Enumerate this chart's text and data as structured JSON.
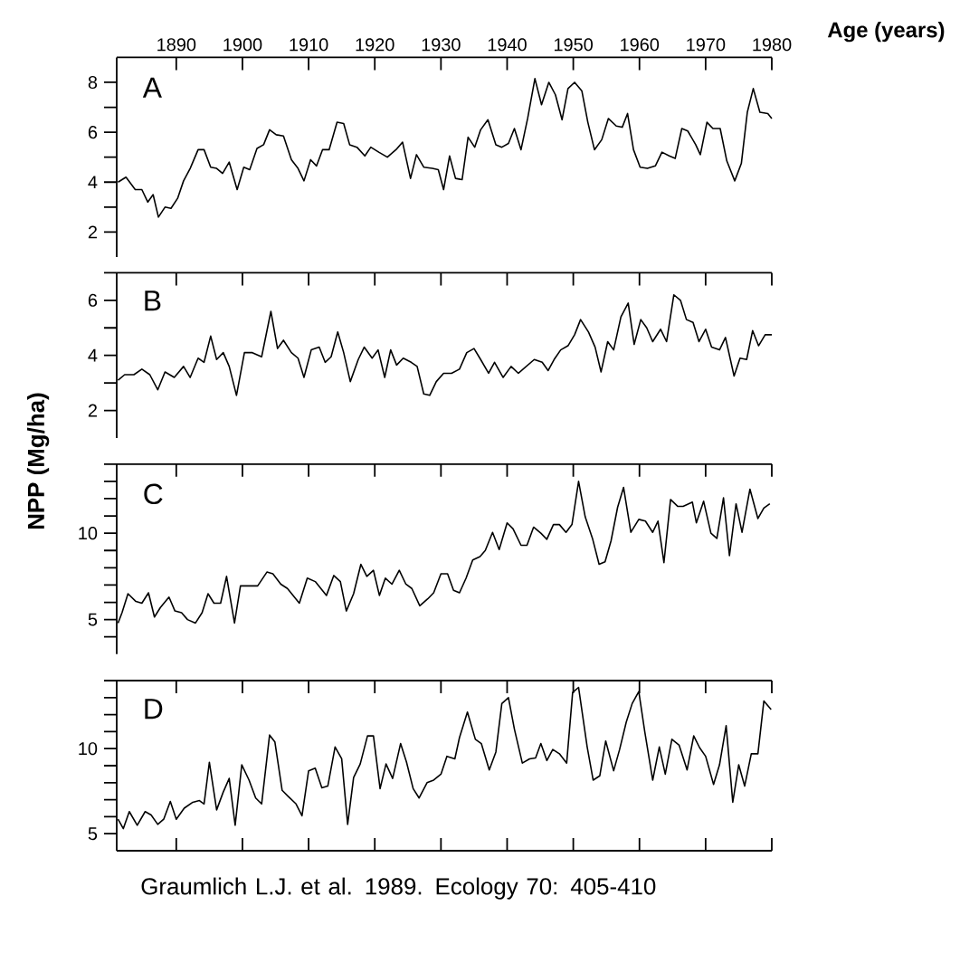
{
  "chart_data": [
    {
      "type": "line",
      "title": "A",
      "xlabel": "Age (years)",
      "x": [
        1881.2,
        1882.4,
        1883.8,
        1884.8,
        1885.7,
        1886.5,
        1887.3,
        1888.3,
        1889.2,
        1890.2,
        1891.1,
        1892.1,
        1893.3,
        1894.2,
        1895.2,
        1896.1,
        1897.0,
        1898.0,
        1899.2,
        1900.2,
        1901.1,
        1902.2,
        1903.2,
        1904.1,
        1905.1,
        1906.2,
        1907.4,
        1908.4,
        1909.3,
        1910.3,
        1911.2,
        1912.1,
        1913.1,
        1914.3,
        1915.3,
        1916.2,
        1917.3,
        1918.5,
        1919.4,
        1920.6,
        1921.9,
        1923.2,
        1924.2,
        1925.4,
        1926.3,
        1927.4,
        1928.7,
        1929.6,
        1930.4,
        1931.3,
        1932.2,
        1933.2,
        1934.1,
        1935.1,
        1936.0,
        1937.1,
        1938.3,
        1939.2,
        1940.2,
        1941.1,
        1942.1,
        1943.1,
        1944.2,
        1945.2,
        1946.3,
        1947.3,
        1948.3,
        1949.2,
        1950.2,
        1951.3,
        1952.2,
        1953.2,
        1954.3,
        1955.3,
        1956.5,
        1957.4,
        1958.2,
        1959.1,
        1960.1,
        1961.2,
        1962.4,
        1963.4,
        1964.5,
        1965.4,
        1966.4,
        1967.3,
        1968.5,
        1969.2,
        1970.2,
        1971.1,
        1972.2,
        1973.2,
        1974.4,
        1975.4,
        1976.3,
        1977.2,
        1978.2,
        1979.4,
        1980
      ],
      "series": [
        {
          "color": "#000000",
          "values": [
            4.0,
            4.2,
            3.7,
            3.7,
            3.2,
            3.5,
            2.6,
            3.0,
            2.95,
            3.35,
            4.05,
            4.55,
            5.3,
            5.3,
            4.6,
            4.55,
            4.35,
            4.8,
            3.7,
            4.6,
            4.5,
            5.35,
            5.5,
            6.1,
            5.9,
            5.85,
            4.9,
            4.55,
            4.05,
            4.9,
            4.65,
            5.3,
            5.3,
            6.4,
            6.35,
            5.5,
            5.4,
            5.05,
            5.4,
            5.2,
            5.0,
            5.3,
            5.6,
            4.15,
            5.1,
            4.6,
            4.55,
            4.5,
            3.7,
            5.05,
            4.15,
            4.1,
            5.8,
            5.4,
            6.1,
            6.5,
            5.5,
            5.4,
            5.55,
            6.15,
            5.3,
            6.55,
            8.15,
            7.1,
            8.0,
            7.5,
            6.5,
            7.75,
            8.0,
            7.65,
            6.4,
            5.3,
            5.7,
            6.55,
            6.25,
            6.2,
            6.75,
            5.3,
            4.6,
            4.55,
            4.65,
            5.2,
            5.05,
            4.95,
            6.15,
            6.05,
            5.5,
            5.1,
            6.4,
            6.15,
            6.15,
            4.85,
            4.05,
            4.75,
            6.8,
            7.75,
            6.8,
            6.75,
            6.55
          ]
        }
      ],
      "xlim": [
        1881,
        1980
      ],
      "xticks": [
        1890,
        1900,
        1910,
        1920,
        1930,
        1940,
        1950,
        1960,
        1970,
        1980
      ],
      "ylim": [
        1,
        9
      ],
      "yticks": [
        2,
        {
          "value": 3,
          "label": null
        },
        4,
        {
          "value": 5,
          "label": null
        },
        6,
        {
          "value": 7,
          "label": null
        },
        8
      ]
    },
    {
      "type": "line",
      "title": "B",
      "ylabel": "NPP (Mg/ha)",
      "x": [
        1881.2,
        1882.2,
        1883.6,
        1884.8,
        1886.0,
        1887.2,
        1888.3,
        1889.7,
        1891.1,
        1892.1,
        1893.3,
        1894.2,
        1895.2,
        1896.1,
        1897.1,
        1898.0,
        1899.1,
        1900.3,
        1901.5,
        1902.9,
        1904.3,
        1905.3,
        1906.2,
        1907.4,
        1908.4,
        1909.3,
        1910.4,
        1911.6,
        1912.5,
        1913.4,
        1914.4,
        1915.3,
        1916.3,
        1917.5,
        1918.4,
        1919.6,
        1920.5,
        1921.5,
        1922.4,
        1923.3,
        1924.3,
        1925.5,
        1926.4,
        1927.4,
        1928.3,
        1929.3,
        1930.4,
        1931.6,
        1932.8,
        1933.9,
        1935.0,
        1936.0,
        1937.2,
        1938.1,
        1939.4,
        1940.6,
        1941.7,
        1942.9,
        1944.1,
        1945.3,
        1946.2,
        1947.1,
        1948.1,
        1949.2,
        1950.2,
        1951.1,
        1952.3,
        1953.3,
        1954.2,
        1955.2,
        1956.1,
        1957.2,
        1958.3,
        1959.2,
        1960.2,
        1961.1,
        1962.0,
        1963.2,
        1964.1,
        1965.2,
        1966.2,
        1967.1,
        1968.1,
        1969.0,
        1970.0,
        1970.9,
        1972.1,
        1973.0,
        1974.3,
        1975.2,
        1976.2,
        1977.1,
        1978.0,
        1979.0,
        1980
      ],
      "series": [
        {
          "color": "#000000",
          "values": [
            3.1,
            3.3,
            3.3,
            3.5,
            3.3,
            2.75,
            3.4,
            3.2,
            3.6,
            3.2,
            3.9,
            3.75,
            4.7,
            3.85,
            4.1,
            3.6,
            2.55,
            4.1,
            4.1,
            3.95,
            5.6,
            4.25,
            4.55,
            4.1,
            3.9,
            3.2,
            4.2,
            4.3,
            3.75,
            3.95,
            4.85,
            4.1,
            3.05,
            3.85,
            4.3,
            3.9,
            4.2,
            3.2,
            4.2,
            3.65,
            3.9,
            3.75,
            3.6,
            2.6,
            2.55,
            3.05,
            3.35,
            3.35,
            3.5,
            4.1,
            4.25,
            3.85,
            3.35,
            3.75,
            3.2,
            3.6,
            3.35,
            3.6,
            3.85,
            3.75,
            3.45,
            3.85,
            4.2,
            4.35,
            4.75,
            5.3,
            4.85,
            4.3,
            3.4,
            4.5,
            4.2,
            5.4,
            5.9,
            4.4,
            5.3,
            5.0,
            4.5,
            4.95,
            4.5,
            6.2,
            6.0,
            5.3,
            5.2,
            4.5,
            4.95,
            4.3,
            4.2,
            4.65,
            3.25,
            3.9,
            3.85,
            4.9,
            4.35,
            4.75,
            4.75
          ]
        }
      ],
      "xlim": [
        1881,
        1980
      ],
      "xticks": [
        1890,
        1900,
        1910,
        1920,
        1930,
        1940,
        1950,
        1960,
        1970,
        1980
      ],
      "ylim": [
        1,
        7
      ],
      "yticks": [
        2,
        {
          "value": 3,
          "label": null
        },
        4,
        {
          "value": 5,
          "label": null
        },
        6,
        {
          "value": 7,
          "label": null
        }
      ],
      "tick_labels": "y"
    },
    {
      "type": "line",
      "title": "C",
      "x": [
        1881.2,
        1881.8,
        1882.7,
        1883.9,
        1884.8,
        1885.8,
        1886.7,
        1887.6,
        1888.9,
        1889.8,
        1890.8,
        1891.7,
        1892.9,
        1893.9,
        1894.8,
        1895.7,
        1896.7,
        1897.6,
        1898.8,
        1899.7,
        1900.8,
        1902.3,
        1903.7,
        1904.6,
        1905.8,
        1906.8,
        1908.6,
        1909.8,
        1911.0,
        1912.7,
        1913.8,
        1914.8,
        1915.7,
        1916.8,
        1917.9,
        1918.8,
        1919.8,
        1920.7,
        1921.6,
        1922.6,
        1923.7,
        1924.7,
        1925.6,
        1926.8,
        1928.0,
        1928.9,
        1930.0,
        1931.0,
        1931.9,
        1932.8,
        1933.8,
        1934.8,
        1935.9,
        1936.7,
        1937.8,
        1938.8,
        1940.0,
        1940.9,
        1942.1,
        1943.0,
        1944.0,
        1945.1,
        1946.0,
        1947.0,
        1947.9,
        1948.9,
        1949.8,
        1950.8,
        1951.8,
        1952.9,
        1953.9,
        1954.8,
        1955.7,
        1956.7,
        1957.6,
        1958.7,
        1959.9,
        1960.9,
        1962.0,
        1962.8,
        1963.7,
        1964.7,
        1965.8,
        1966.6,
        1968.0,
        1968.6,
        1969.7,
        1970.8,
        1971.7,
        1972.7,
        1973.6,
        1974.6,
        1975.5,
        1976.7,
        1977.9,
        1978.8,
        1979.7
      ],
      "series": [
        {
          "color": "#000000",
          "values": [
            4.8,
            5.4,
            6.5,
            6.05,
            5.95,
            6.55,
            5.15,
            5.7,
            6.3,
            5.5,
            5.4,
            5.0,
            4.8,
            5.4,
            6.5,
            5.95,
            5.95,
            7.5,
            4.8,
            6.95,
            6.95,
            6.95,
            7.75,
            7.65,
            7.05,
            6.8,
            5.95,
            7.4,
            7.2,
            6.4,
            7.55,
            7.2,
            5.5,
            6.5,
            8.2,
            7.5,
            7.85,
            6.4,
            7.4,
            7.05,
            7.85,
            7.05,
            6.8,
            5.8,
            6.2,
            6.55,
            7.65,
            7.65,
            6.7,
            6.55,
            7.4,
            8.45,
            8.65,
            9.0,
            10.05,
            9.05,
            10.6,
            10.25,
            9.3,
            9.3,
            10.35,
            10.0,
            9.65,
            10.5,
            10.5,
            10.05,
            10.5,
            13.0,
            10.95,
            9.7,
            8.2,
            8.35,
            9.55,
            11.5,
            12.65,
            10.05,
            10.8,
            10.7,
            10.05,
            10.7,
            8.3,
            11.95,
            11.55,
            11.55,
            11.8,
            10.6,
            11.85,
            10.0,
            9.7,
            12.05,
            8.7,
            11.7,
            10.05,
            12.55,
            10.85,
            11.45,
            11.7
          ]
        }
      ],
      "xlim": [
        1881,
        1980
      ],
      "xticks": [
        1890,
        1900,
        1910,
        1920,
        1930,
        1940,
        1950,
        1960,
        1970,
        1980
      ],
      "ylim": [
        3,
        14
      ],
      "yticks": [
        {
          "value": 4,
          "label": null
        },
        5,
        {
          "value": 6,
          "label": null
        },
        {
          "value": 7,
          "label": null
        },
        {
          "value": 8,
          "label": null
        },
        {
          "value": 9,
          "label": null
        },
        10,
        {
          "value": 11,
          "label": null
        },
        {
          "value": 12,
          "label": null
        },
        {
          "value": 13,
          "label": null
        },
        {
          "value": 14,
          "label": null
        }
      ],
      "tick_labels": "y"
    },
    {
      "type": "line",
      "title": "D",
      "annotations": [
        "Graumlich L.J. et al. 1989. Ecology 70: 405-410"
      ],
      "x": [
        1881.2,
        1882.0,
        1882.9,
        1884.1,
        1885.3,
        1886.2,
        1887.2,
        1888.1,
        1889.1,
        1890.0,
        1891.2,
        1892.5,
        1893.5,
        1894.2,
        1895.0,
        1896.1,
        1897.1,
        1898.0,
        1898.9,
        1899.9,
        1901.0,
        1902.0,
        1902.9,
        1904.1,
        1904.9,
        1906.0,
        1906.9,
        1908.1,
        1909.0,
        1910.0,
        1911.0,
        1912.0,
        1912.9,
        1914.0,
        1915.0,
        1915.9,
        1916.8,
        1917.8,
        1918.9,
        1919.8,
        1920.8,
        1921.7,
        1922.7,
        1923.9,
        1924.8,
        1925.8,
        1926.7,
        1927.9,
        1928.9,
        1930.0,
        1930.9,
        1932.1,
        1932.8,
        1934.0,
        1935.2,
        1936.1,
        1937.3,
        1938.3,
        1939.2,
        1940.2,
        1941.1,
        1942.3,
        1943.4,
        1944.3,
        1945.1,
        1946.0,
        1946.9,
        1947.9,
        1949.0,
        1949.9,
        1950.8,
        1952.1,
        1953.0,
        1954.0,
        1954.9,
        1956.1,
        1957.0,
        1958.0,
        1958.9,
        1959.9,
        1960.8,
        1962.0,
        1963.0,
        1963.9,
        1964.9,
        1966.0,
        1967.2,
        1968.2,
        1969.1,
        1970.0,
        1971.2,
        1972.1,
        1973.1,
        1974.1,
        1975.0,
        1975.9,
        1976.9,
        1977.9,
        1978.8,
        1979.9
      ],
      "series": [
        {
          "color": "#000000",
          "values": [
            5.85,
            5.3,
            6.3,
            5.5,
            6.3,
            6.1,
            5.55,
            5.85,
            6.9,
            5.85,
            6.5,
            6.85,
            6.95,
            6.75,
            9.2,
            6.4,
            7.45,
            8.25,
            5.5,
            9.05,
            8.15,
            7.1,
            6.75,
            10.8,
            10.4,
            7.55,
            7.2,
            6.75,
            6.05,
            8.7,
            8.85,
            7.7,
            7.8,
            10.1,
            9.4,
            5.55,
            8.3,
            9.1,
            10.75,
            10.75,
            7.65,
            9.1,
            8.25,
            10.3,
            9.2,
            7.65,
            7.1,
            8.0,
            8.15,
            8.5,
            9.55,
            9.4,
            10.65,
            12.15,
            10.55,
            10.3,
            8.75,
            9.8,
            12.65,
            13.0,
            11.15,
            9.15,
            9.4,
            9.45,
            10.3,
            9.3,
            9.95,
            9.7,
            9.15,
            13.3,
            13.6,
            10.1,
            8.15,
            8.4,
            10.45,
            8.7,
            9.95,
            11.55,
            12.65,
            13.35,
            11.0,
            8.15,
            10.1,
            8.5,
            10.55,
            10.2,
            8.75,
            10.75,
            10.05,
            9.55,
            7.9,
            9.05,
            11.35,
            6.85,
            9.05,
            7.8,
            9.7,
            9.7,
            12.8,
            12.3
          ]
        }
      ],
      "xlim": [
        1881,
        1980
      ],
      "xticks": [
        1890,
        1900,
        1910,
        1920,
        1930,
        1940,
        1950,
        1960,
        1970,
        1980
      ],
      "ylim": [
        4,
        14
      ],
      "yticks": [
        5,
        {
          "value": 6,
          "label": null
        },
        {
          "value": 7,
          "label": null
        },
        {
          "value": 8,
          "label": null
        },
        {
          "value": 9,
          "label": null
        },
        10,
        {
          "value": 11,
          "label": null
        },
        {
          "value": 12,
          "label": null
        },
        {
          "value": 13,
          "label": null
        },
        {
          "value": 14,
          "label": null
        }
      ],
      "tick_labels": "y"
    }
  ]
}
